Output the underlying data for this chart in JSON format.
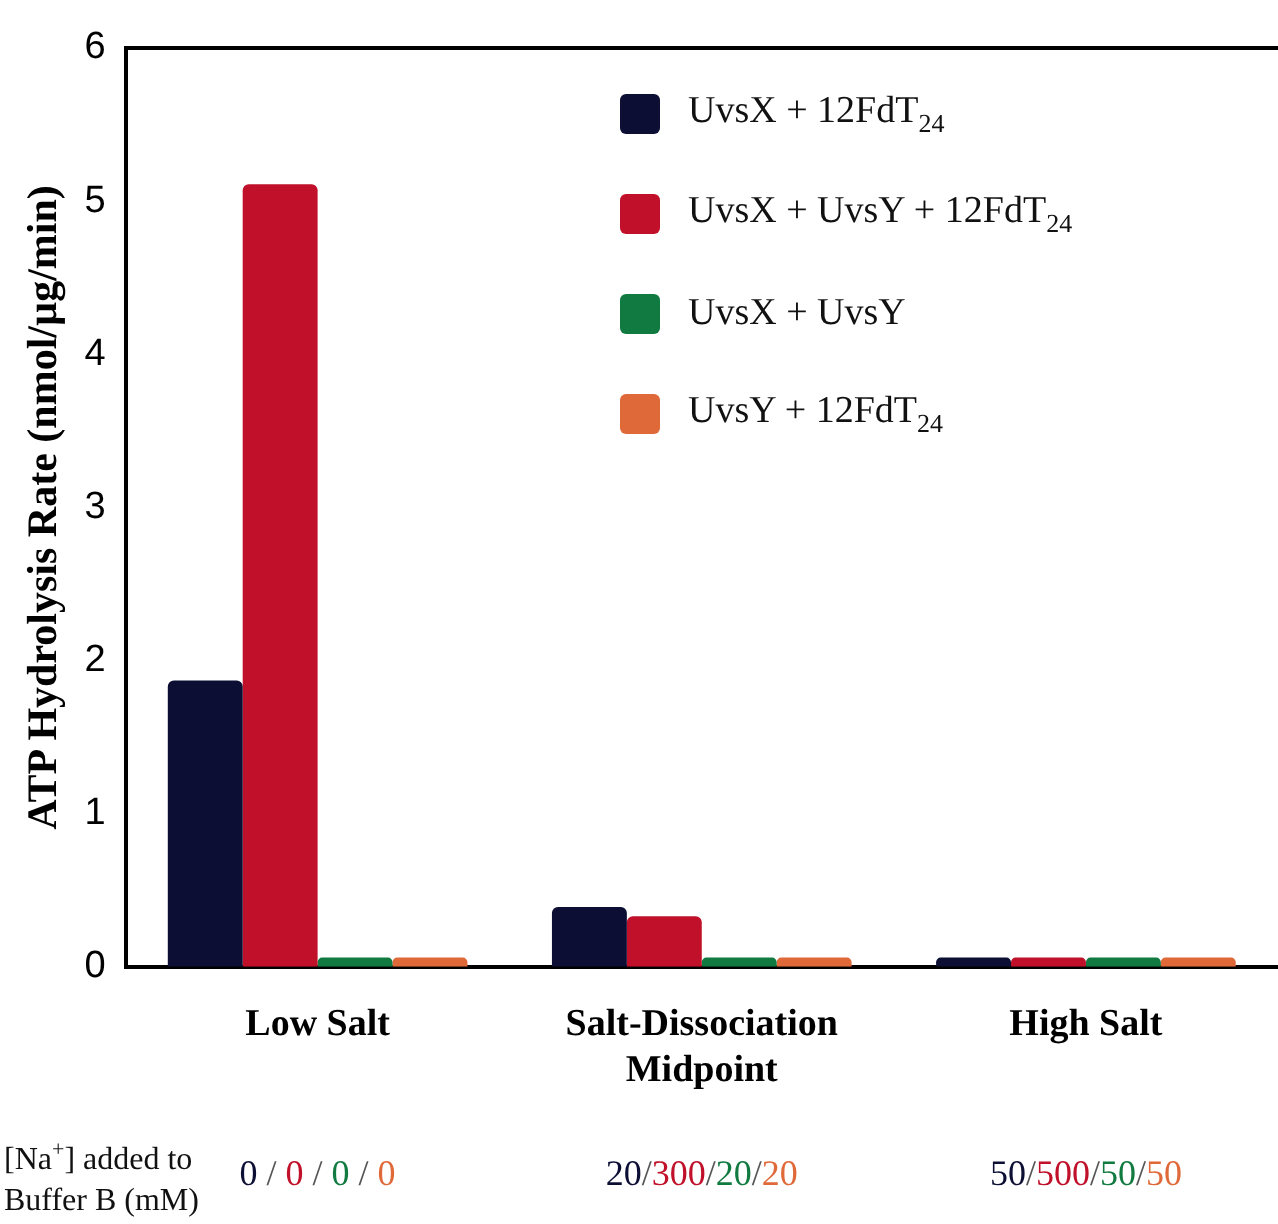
{
  "chart_data": {
    "type": "bar",
    "ylabel": "ATP Hydrolysis Rate (nmol/µg/min)",
    "categories": [
      "Low Salt",
      "Salt-Dissociation Midpoint",
      "High Salt"
    ],
    "series": [
      {
        "name": "UvsX + 12FdT$_{24}$",
        "color": "#0c0f33",
        "values": [
          1.87,
          0.39,
          0.06
        ]
      },
      {
        "name": "UvsX + UvsY + 12FdT$_{24}$",
        "color": "#c0102a",
        "values": [
          5.11,
          0.33,
          0.06
        ]
      },
      {
        "name": "UvsX + UvsY",
        "color": "#117a40",
        "values": [
          0.06,
          0.06,
          0.06
        ]
      },
      {
        "name": "UvsY + 12FdT$_{24}$",
        "color": "#e0693a",
        "values": [
          0.06,
          0.06,
          0.06
        ]
      }
    ],
    "ylim": [
      0,
      6
    ],
    "yticks": [
      0,
      1,
      2,
      3,
      4,
      5,
      6
    ],
    "legend": "top right",
    "annotations": [
      "[Na$^{+}$] added to Buffer B (mM)",
      "0 / 0 / 0 / 0",
      "20/300/20/20",
      "50/500/50/50"
    ]
  }
}
